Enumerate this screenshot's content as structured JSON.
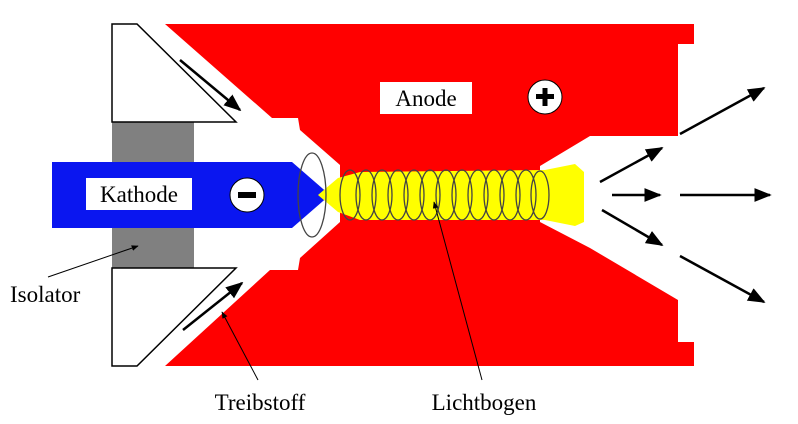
{
  "labels": {
    "anode": "Anode",
    "kathode": "Kathode",
    "isolator": "Isolator",
    "treibstoff": "Treibstoff",
    "lichtbogen": "Lichtbogen",
    "plus": "+",
    "minus": "−"
  },
  "colors": {
    "anode": "#ff0000",
    "kathode": "#0a16f0",
    "isolator": "#808080",
    "lichtbogen": "#ffff00",
    "outline": "#000000",
    "background": "#ffffff"
  },
  "icons": [
    "plus-icon",
    "minus-icon",
    "flow-arrow-icon",
    "coil-icon"
  ]
}
